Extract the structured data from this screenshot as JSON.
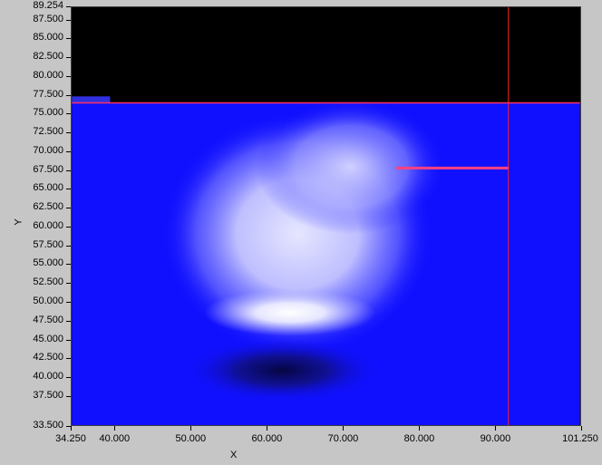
{
  "chart_data": {
    "type": "heatmap",
    "title": "",
    "xlabel": "X",
    "ylabel": "Y",
    "xlim": [
      34.25,
      101.25
    ],
    "ylim": [
      33.5,
      89.254
    ],
    "x_ticks": [
      "34.250",
      "40.000",
      "50.000",
      "60.000",
      "70.000",
      "80.000",
      "90.000",
      "101.250"
    ],
    "x_tick_values": [
      34.25,
      40,
      50,
      60,
      70,
      80,
      90,
      101.25
    ],
    "y_ticks": [
      "89.254",
      "87.500",
      "85.000",
      "82.500",
      "80.000",
      "77.500",
      "75.000",
      "72.500",
      "70.000",
      "67.500",
      "65.000",
      "62.500",
      "60.000",
      "57.500",
      "55.000",
      "52.500",
      "50.000",
      "47.500",
      "45.000",
      "42.500",
      "40.000",
      "37.500",
      "33.500"
    ],
    "y_tick_values": [
      89.254,
      87.5,
      85,
      82.5,
      80,
      77.5,
      75,
      72.5,
      70,
      67.5,
      65,
      62.5,
      60,
      57.5,
      55,
      52.5,
      50,
      47.5,
      45,
      42.5,
      40,
      37.5,
      33.5
    ],
    "data_top_y": 76.5,
    "colors": {
      "no_data": "#000000",
      "background_low": "#1010ff",
      "mid": "#5a5aff",
      "high": "#e8e8ff",
      "peak": "#ffffff",
      "dark_spot": "#050540",
      "cursor": "#ff2020",
      "cursor_horizontal": "#ff3060",
      "marker_segment": "#ff4080"
    },
    "cursor": {
      "x": 91.8,
      "y": 76.5
    },
    "marker_segment": {
      "x_start": 77.0,
      "x_end": 91.8,
      "y": 67.8
    },
    "top_left_patch": {
      "x_start": 34.25,
      "x_end": 39.3,
      "y": 77.0
    }
  }
}
